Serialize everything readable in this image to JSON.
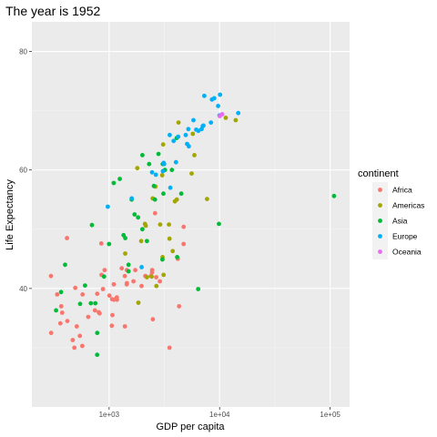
{
  "chart_data": {
    "type": "scatter",
    "title": "The year is 1952",
    "xlabel": "GDP per capita",
    "ylabel": "Life Expectancy",
    "x_scale": "log10",
    "xlim": [
      200,
      150000
    ],
    "ylim": [
      20,
      85
    ],
    "x_ticks": [
      1000,
      10000,
      100000
    ],
    "x_tick_labels": [
      "1e+03",
      "1e+04",
      "1e+05"
    ],
    "y_ticks": [
      40,
      60,
      80
    ],
    "y_tick_labels": [
      "40",
      "60",
      "80"
    ],
    "grid": true,
    "legend": {
      "title": "continent",
      "position": "right"
    },
    "series": [
      {
        "name": "Africa",
        "color": "#F8766D",
        "points": [
          [
            2449,
            43.1
          ],
          [
            3521,
            30.0
          ],
          [
            1063,
            38.2
          ],
          [
            851,
            47.6
          ],
          [
            543,
            32.0
          ],
          [
            339,
            39.0
          ],
          [
            1173,
            38.5
          ],
          [
            1071,
            35.5
          ],
          [
            1179,
            38.1
          ],
          [
            1103,
            40.7
          ],
          [
            781,
            39.1
          ],
          [
            2126,
            42.1
          ],
          [
            1389,
            33.6
          ],
          [
            2670,
            41.9
          ],
          [
            419,
            34.5
          ],
          [
            376,
            35.9
          ],
          [
            362,
            34.1
          ],
          [
            4293,
            37.0
          ],
          [
            485,
            30.0
          ],
          [
            911,
            43.1
          ],
          [
            510,
            33.6
          ],
          [
            299,
            32.5
          ],
          [
            853,
            42.3
          ],
          [
            298,
            42.1
          ],
          [
            575,
            39.0
          ],
          [
            2388,
            42.1
          ],
          [
            1443,
            40.7
          ],
          [
            369,
            37.0
          ],
          [
            744,
            36.3
          ],
          [
            1450,
            40.9
          ],
          [
            1967,
            40.4
          ],
          [
            469,
            31.3
          ],
          [
            1058,
            33.7
          ],
          [
            4185,
            45.0
          ],
          [
            494,
            40.1
          ],
          [
            2878,
            41.2
          ],
          [
            1445,
            43.1
          ],
          [
            572,
            30.3
          ],
          [
            1662,
            41.2
          ],
          [
            4725,
            47.5
          ],
          [
            647,
            35.2
          ],
          [
            806,
            36.0
          ],
          [
            1104,
            38.1
          ],
          [
            2444,
            42.7
          ],
          [
            1725,
            43.1
          ],
          [
            820,
            35.8
          ],
          [
            1388,
            42.1
          ],
          [
            880,
            39.9
          ],
          [
            2490,
            34.8
          ],
          [
            2602,
            52.7
          ],
          [
            416,
            48.5
          ],
          [
            1006,
            38.8
          ],
          [
            1301,
            43.4
          ],
          [
            4724,
            50.4
          ]
        ]
      },
      {
        "name": "Americas",
        "color": "#A3A500",
        "points": [
          [
            5911,
            62.5
          ],
          [
            2677,
            40.4
          ],
          [
            2109,
            50.9
          ],
          [
            11367,
            68.8
          ],
          [
            3940,
            54.7
          ],
          [
            2144,
            50.6
          ],
          [
            2627,
            57.2
          ],
          [
            5587,
            59.4
          ],
          [
            1398,
            45.9
          ],
          [
            3522,
            48.4
          ],
          [
            3048,
            45.3
          ],
          [
            2428,
            42.0
          ],
          [
            1840,
            37.6
          ],
          [
            2194,
            41.9
          ],
          [
            2898,
            50.8
          ],
          [
            3478,
            50.8
          ],
          [
            3112,
            42.3
          ],
          [
            2480,
            55.2
          ],
          [
            1952,
            48.0
          ],
          [
            3759,
            46.3
          ],
          [
            3081,
            64.3
          ],
          [
            3024,
            59.1
          ],
          [
            4245,
            68.0
          ],
          [
            5717,
            66.1
          ],
          [
            7690,
            55.1
          ],
          [
            13990,
            68.4
          ],
          [
            1800,
            60.3
          ],
          [
            4100,
            55.0
          ]
        ]
      },
      {
        "name": "Asia",
        "color": "#00BA38",
        "points": [
          [
            779,
            28.8
          ],
          [
            9867,
            50.9
          ],
          [
            684,
            37.5
          ],
          [
            368,
            39.4
          ],
          [
            400,
            44.0
          ],
          [
            3054,
            61.0
          ],
          [
            547,
            37.4
          ],
          [
            750,
            37.5
          ],
          [
            3035,
            44.9
          ],
          [
            4130,
            45.3
          ],
          [
            4086,
            65.4
          ],
          [
            108382,
            55.6
          ],
          [
            1400,
            48.5
          ],
          [
            2540,
            57.3
          ],
          [
            1500,
            42.9
          ],
          [
            2000,
            50.0
          ],
          [
            2200,
            48.0
          ],
          [
            1250,
            58.5
          ],
          [
            1100,
            57.8
          ],
          [
            2600,
            55.0
          ],
          [
            900,
            42.0
          ],
          [
            3200,
            60.0
          ],
          [
            1600,
            55.0
          ],
          [
            331,
            36.3
          ],
          [
            2300,
            61.0
          ],
          [
            700,
            50.7
          ],
          [
            2800,
            62.7
          ],
          [
            1830,
            52.0
          ],
          [
            4500,
            56.0
          ],
          [
            6400,
            39.9
          ],
          [
            605,
            40.5
          ],
          [
            1350,
            49.0
          ],
          [
            3100,
            56.0
          ],
          [
            1700,
            52.5
          ],
          [
            1500,
            44.0
          ],
          [
            1000,
            47.5
          ],
          [
            3700,
            60.0
          ],
          [
            781,
            32.5
          ],
          [
            2000,
            62.5
          ]
        ]
      },
      {
        "name": "Europe",
        "color": "#00B0F6",
        "points": [
          [
            1601,
            55.2
          ],
          [
            6137,
            66.8
          ],
          [
            8343,
            68.0
          ],
          [
            973,
            53.8
          ],
          [
            2444,
            59.6
          ],
          [
            3119,
            61.2
          ],
          [
            6877,
            66.9
          ],
          [
            9692,
            70.8
          ],
          [
            6425,
            66.6
          ],
          [
            7030,
            67.4
          ],
          [
            7144,
            67.5
          ],
          [
            3531,
            65.9
          ],
          [
            5263,
            64.0
          ],
          [
            7268,
            72.5
          ],
          [
            5210,
            66.9
          ],
          [
            4931,
            65.9
          ],
          [
            2647,
            59.2
          ],
          [
            8942,
            72.1
          ],
          [
            10095,
            72.7
          ],
          [
            4029,
            61.3
          ],
          [
            3068,
            59.8
          ],
          [
            3145,
            61.0
          ],
          [
            3581,
            57.0
          ],
          [
            5074,
            64.4
          ],
          [
            4215,
            65.6
          ],
          [
            3834,
            64.9
          ],
          [
            8528,
            71.9
          ],
          [
            14734,
            69.6
          ],
          [
            1970,
            43.6
          ],
          [
            9980,
            69.2
          ],
          [
            5800,
            68.4
          ]
        ]
      },
      {
        "name": "Oceania",
        "color": "#E76BF3",
        "points": [
          [
            10040,
            69.1
          ],
          [
            10557,
            69.4
          ]
        ]
      }
    ]
  }
}
